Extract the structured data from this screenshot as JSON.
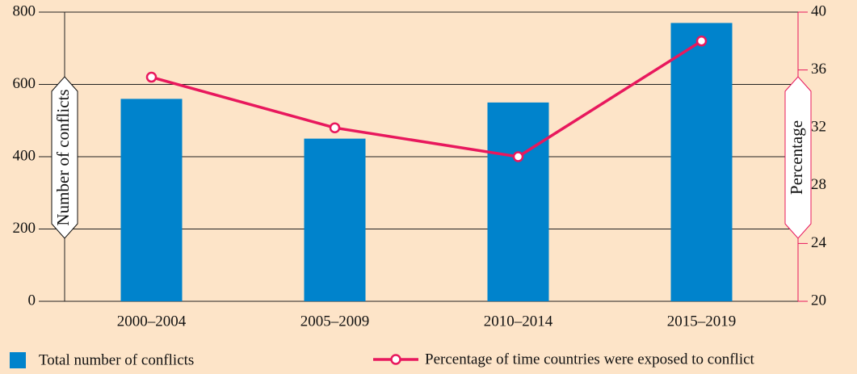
{
  "chart_data": {
    "type": "bar",
    "categories": [
      "2000–2004",
      "2005–2009",
      "2010–2014",
      "2015–2019"
    ],
    "series": [
      {
        "name": "Total number of conflicts",
        "color": "#0083cc",
        "values": [
          560,
          450,
          550,
          770
        ]
      },
      {
        "name": "Percentage of time countries were exposed to conflict",
        "color": "#e8185d",
        "type": "line",
        "axis": "y2",
        "values": [
          35.5,
          32,
          30,
          38
        ]
      }
    ],
    "ylabel": "Number of conflicts",
    "y2label": "Percentage",
    "ylim": [
      0,
      800
    ],
    "yticks": [
      0,
      200,
      400,
      600,
      800
    ],
    "y2lim": [
      20,
      40
    ],
    "y2ticks": [
      20,
      24,
      28,
      32,
      36,
      40
    ],
    "grid": true,
    "legend": "bottom",
    "background": "#fde4c8"
  }
}
